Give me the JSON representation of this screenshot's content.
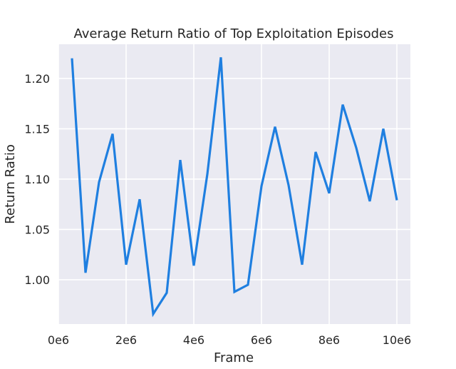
{
  "chart_data": {
    "type": "line",
    "title": "Average Return Ratio of Top Exploitation Episodes",
    "xlabel": "Frame",
    "ylabel": "Return Ratio",
    "xlim": [
      0,
      10400000
    ],
    "ylim": [
      0.956,
      1.234
    ],
    "grid": true,
    "x_ticks": [
      {
        "value": 0,
        "label": "0e6"
      },
      {
        "value": 2000000,
        "label": "2e6"
      },
      {
        "value": 4000000,
        "label": "4e6"
      },
      {
        "value": 6000000,
        "label": "6e6"
      },
      {
        "value": 8000000,
        "label": "8e6"
      },
      {
        "value": 10000000,
        "label": "10e6"
      }
    ],
    "y_ticks": [
      {
        "value": 1.0,
        "label": "1.00"
      },
      {
        "value": 1.05,
        "label": "1.05"
      },
      {
        "value": 1.1,
        "label": "1.10"
      },
      {
        "value": 1.15,
        "label": "1.15"
      },
      {
        "value": 1.2,
        "label": "1.20"
      }
    ],
    "colors": {
      "line": "#1f7fe0",
      "background": "#eaeaf2",
      "grid": "#ffffff"
    },
    "series": [
      {
        "x": [
          400000,
          800000,
          1200000,
          1600000,
          2000000,
          2400000,
          2800000,
          3200000,
          3600000,
          4000000,
          4400000,
          4800000,
          5200000,
          5600000,
          6000000,
          6400000,
          6800000,
          7200000,
          7600000,
          8000000,
          8400000,
          8800000,
          9200000,
          9600000,
          10000000
        ],
        "y": [
          1.22,
          1.007,
          1.097,
          1.145,
          1.015,
          1.08,
          0.966,
          0.987,
          1.119,
          1.014,
          1.105,
          1.221,
          0.988,
          0.995,
          1.093,
          1.152,
          1.094,
          1.015,
          1.127,
          1.086,
          1.174,
          1.131,
          1.078,
          1.15,
          1.079
        ]
      }
    ]
  }
}
